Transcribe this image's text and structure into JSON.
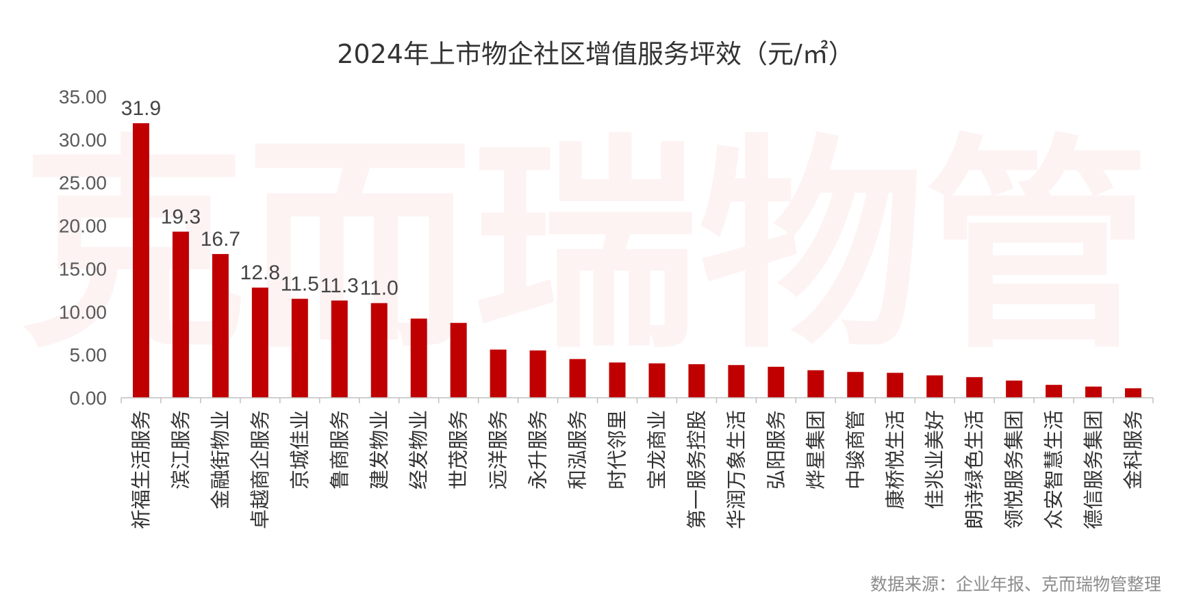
{
  "watermark": "克而瑞物管",
  "source_note": "数据来源：企业年报、克而瑞物管整理",
  "colors": {
    "bar": "#c00000",
    "axis": "#bfbfbf",
    "watermark": "#d9302f"
  },
  "chart_data": {
    "type": "bar",
    "title": "2024年上市物企社区增值服务坪效（元/㎡）",
    "xlabel": "",
    "ylabel": "",
    "ylim": [
      0,
      35
    ],
    "yticks": [
      "0.00",
      "5.00",
      "10.00",
      "15.00",
      "20.00",
      "25.00",
      "30.00",
      "35.00"
    ],
    "grid": false,
    "legend": "none",
    "categories": [
      "祈福生活服务",
      "滨江服务",
      "金融街物业",
      "卓越商企服务",
      "京城佳业",
      "鲁商服务",
      "建发物业",
      "经发物业",
      "世茂服务",
      "远洋服务",
      "永升服务",
      "和泓服务",
      "时代邻里",
      "宝龙商业",
      "第一服务控股",
      "华润万象生活",
      "弘阳服务",
      "烨星集团",
      "中骏商管",
      "康桥悦生活",
      "佳兆业美好",
      "朗诗绿色生活",
      "领悦服务集团",
      "众安智慧生活",
      "德信服务集团",
      "金科服务"
    ],
    "values": [
      31.9,
      19.3,
      16.7,
      12.8,
      11.5,
      11.3,
      11.0,
      9.2,
      8.7,
      5.6,
      5.5,
      4.5,
      4.1,
      4.0,
      3.9,
      3.8,
      3.6,
      3.2,
      3.0,
      2.9,
      2.6,
      2.4,
      2.0,
      1.5,
      1.3,
      1.1
    ],
    "data_labels": [
      "31.9",
      "19.3",
      "16.7",
      "12.8",
      "11.5",
      "11.3",
      "11.0",
      "",
      "",
      "",
      "",
      "",
      "",
      "",
      "",
      "",
      "",
      "",
      "",
      "",
      "",
      "",
      "",
      "",
      "",
      ""
    ]
  }
}
